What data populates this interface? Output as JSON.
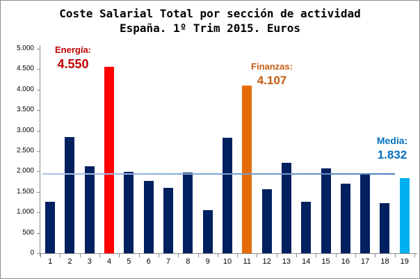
{
  "chart_data": {
    "type": "bar",
    "title": "Coste Salarial Total por sección de actividad",
    "subtitle": "España. 1º Trim 2015. Euros",
    "categories": [
      "1",
      "2",
      "3",
      "4",
      "5",
      "6",
      "7",
      "8",
      "9",
      "10",
      "11",
      "12",
      "13",
      "14",
      "15",
      "16",
      "17",
      "18",
      "19"
    ],
    "values": [
      1250,
      2840,
      2130,
      4550,
      1990,
      1770,
      1600,
      1980,
      1055,
      2820,
      4107,
      1570,
      2215,
      1260,
      2075,
      1700,
      1935,
      1230,
      1832
    ],
    "bar_colors": [
      "#002060",
      "#002060",
      "#002060",
      "#FF0000",
      "#002060",
      "#002060",
      "#002060",
      "#002060",
      "#002060",
      "#002060",
      "#E36C09",
      "#002060",
      "#002060",
      "#002060",
      "#002060",
      "#002060",
      "#002060",
      "#002060",
      "#00B0F0"
    ],
    "xlabel": "",
    "ylabel": "",
    "ylim": [
      0,
      5000
    ],
    "ytick_step": 500,
    "ytick_labels_top_down": [
      "5.000",
      "4.500",
      "4.000",
      "3.500",
      "3.000",
      "2.500",
      "2.000",
      "1.500",
      "1.000",
      "500",
      "0"
    ],
    "grid": false,
    "legend": false,
    "annotations": [
      {
        "target_bar": "4",
        "label": "Energía:",
        "value": "4.550",
        "color": "#C00000"
      },
      {
        "target_bar": "11",
        "label": "Finanzas:",
        "value": "4.107",
        "color": "#C45A10"
      },
      {
        "target_bar": "19",
        "label": "Media:",
        "value": "1.832",
        "color": "#0070C0"
      }
    ],
    "mean_line": {
      "value": 1832,
      "drawn_at_value": 1950,
      "color_left": "#A9C5E5",
      "color_right": "#4E81BD"
    },
    "axis_color": "#8c8c8c",
    "default_bar_color": "#002060"
  }
}
